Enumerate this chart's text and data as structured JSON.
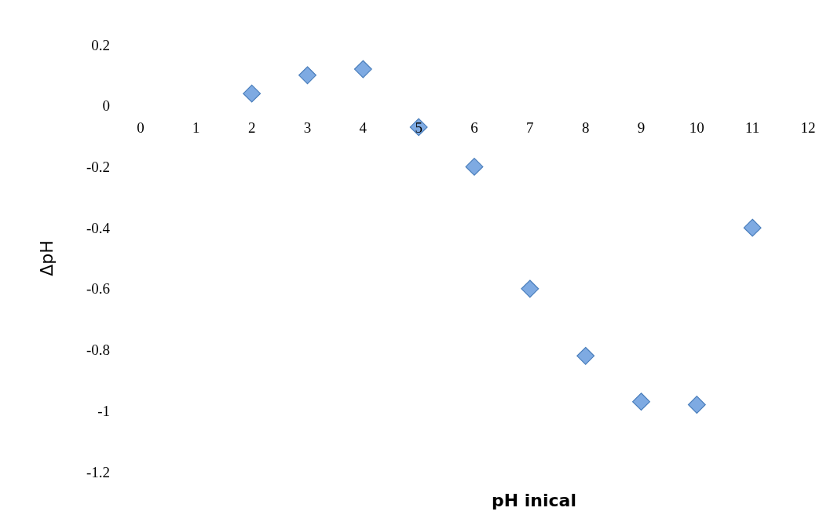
{
  "chart_data": {
    "type": "scatter",
    "xlabel": "pH inical",
    "ylabel": "ΔpH",
    "x": [
      2,
      3,
      4,
      5,
      6,
      7,
      8,
      9,
      10,
      11
    ],
    "series": [
      {
        "color": "#7eaae2",
        "values": [
          0.04,
          0.1,
          0.12,
          -0.07,
          -0.2,
          -0.6,
          -0.82,
          -0.97,
          -0.98,
          -0.4
        ]
      }
    ],
    "xlim": [
      0,
      12
    ],
    "xticks": [
      0,
      1,
      2,
      3,
      4,
      5,
      6,
      7,
      8,
      9,
      10,
      11,
      12
    ],
    "ylim": [
      -1.2,
      0.2
    ],
    "yticks": [
      -1.2,
      -1,
      -0.8,
      -0.6,
      -0.4,
      -0.2,
      0,
      0.2
    ],
    "marker": "diamond",
    "grid": false
  }
}
